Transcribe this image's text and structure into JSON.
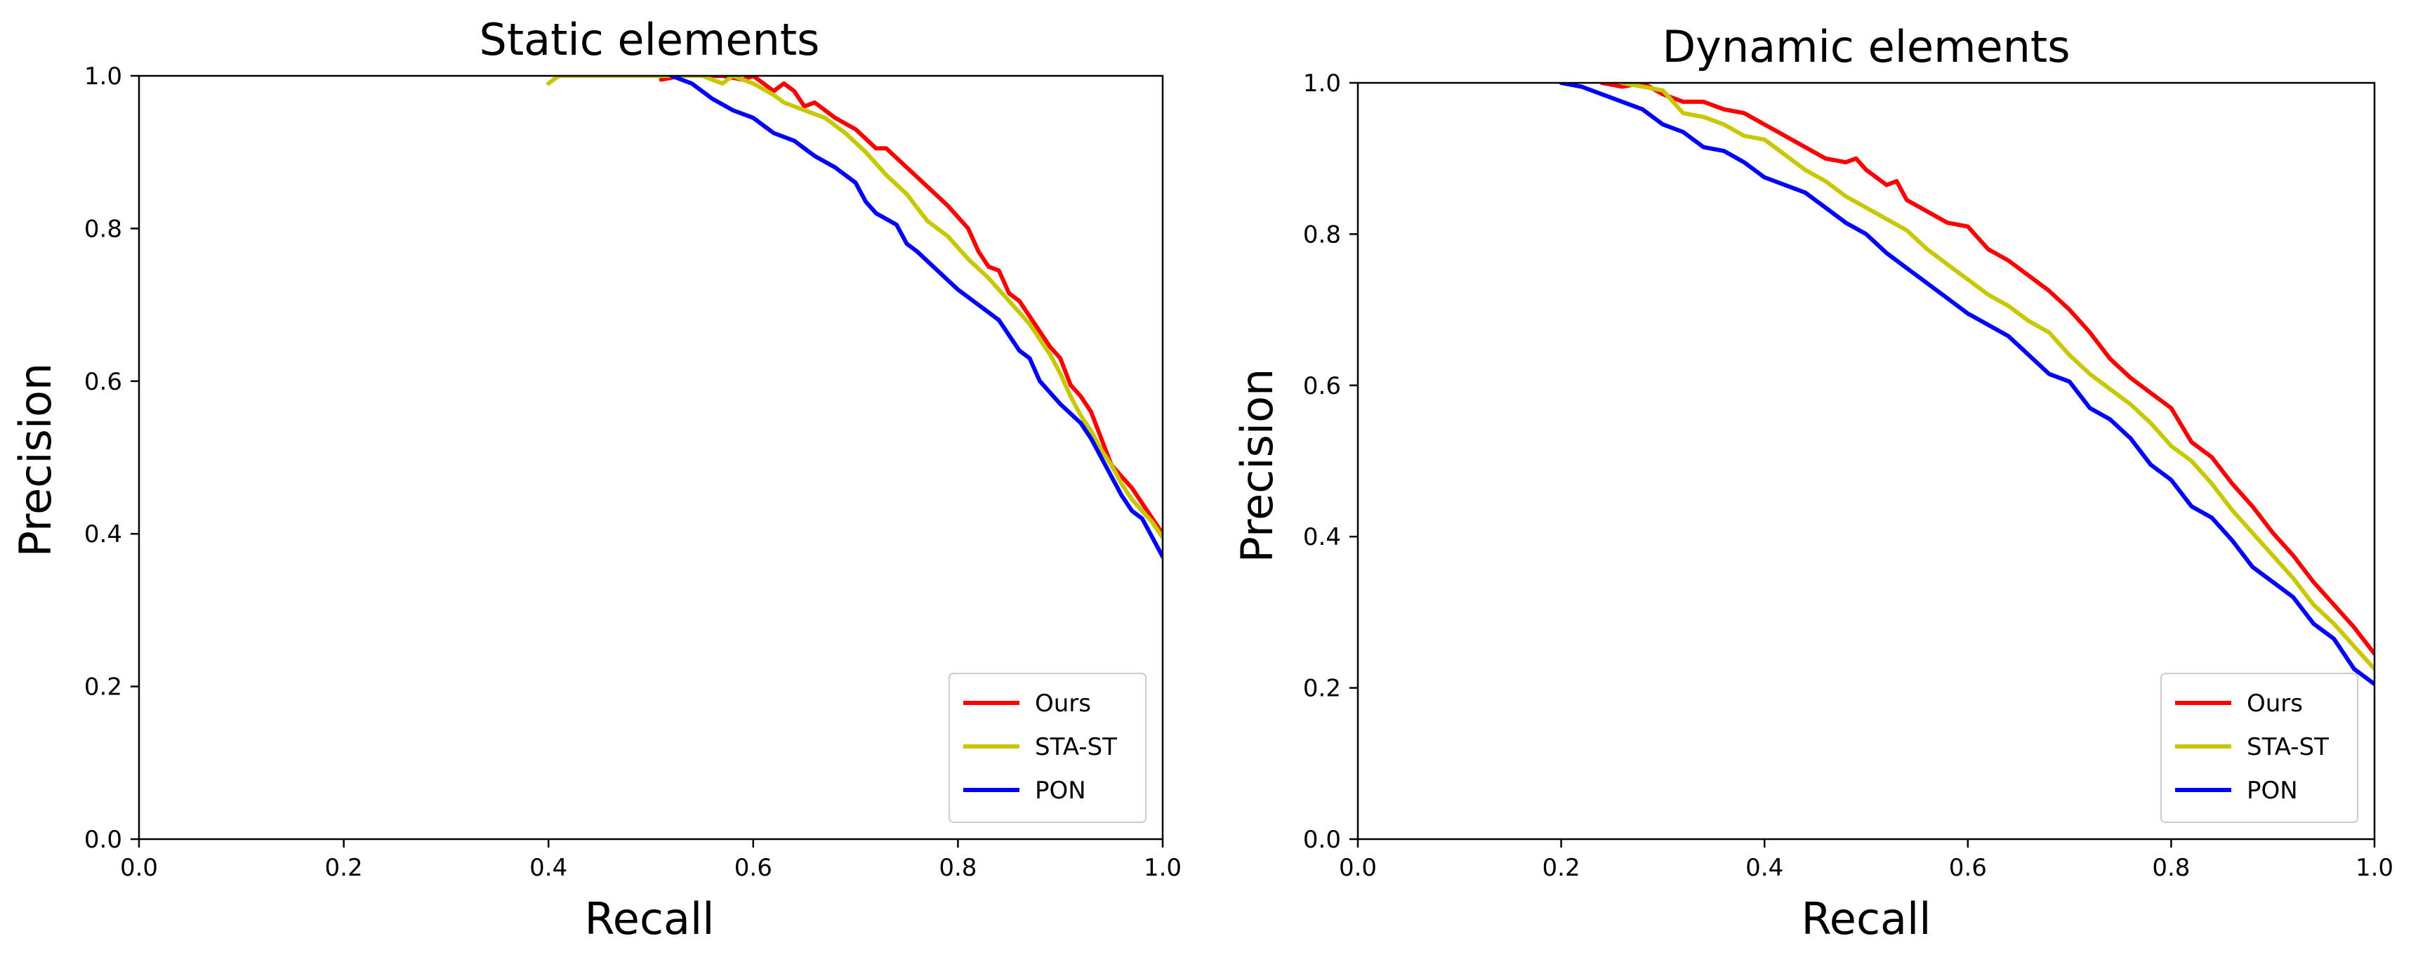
{
  "chart_data": [
    {
      "type": "line",
      "title": "Static elements",
      "xlabel": "Recall",
      "ylabel": "Precision",
      "xlim": [
        0.0,
        1.0
      ],
      "ylim": [
        0.0,
        1.0
      ],
      "xticks": [
        "0.0",
        "0.2",
        "0.4",
        "0.6",
        "0.8",
        "1.0"
      ],
      "yticks": [
        "0.0",
        "0.2",
        "0.4",
        "0.6",
        "0.8",
        "1.0"
      ],
      "grid": false,
      "legend_position": "bottom-right",
      "series": [
        {
          "name": "Ours",
          "color": "#ff0000",
          "x": [
            0.51,
            0.53,
            0.55,
            0.57,
            0.59,
            0.6,
            0.61,
            0.62,
            0.63,
            0.64,
            0.65,
            0.66,
            0.67,
            0.68,
            0.7,
            0.72,
            0.73,
            0.75,
            0.77,
            0.79,
            0.81,
            0.82,
            0.83,
            0.84,
            0.85,
            0.86,
            0.87,
            0.88,
            0.89,
            0.9,
            0.91,
            0.92,
            0.93,
            0.94,
            0.95,
            0.96,
            0.97,
            0.98,
            0.99,
            1.0
          ],
          "y": [
            0.995,
            1.0,
            1.0,
            1.0,
            0.995,
            1.0,
            0.99,
            0.98,
            0.99,
            0.98,
            0.96,
            0.965,
            0.955,
            0.945,
            0.93,
            0.905,
            0.905,
            0.88,
            0.855,
            0.83,
            0.8,
            0.77,
            0.75,
            0.745,
            0.715,
            0.705,
            0.685,
            0.665,
            0.645,
            0.63,
            0.595,
            0.58,
            0.56,
            0.525,
            0.49,
            0.475,
            0.46,
            0.44,
            0.42,
            0.4
          ]
        },
        {
          "name": "STA-ST",
          "color": "#c8c800",
          "x": [
            0.4,
            0.41,
            0.45,
            0.5,
            0.55,
            0.57,
            0.58,
            0.6,
            0.62,
            0.63,
            0.65,
            0.67,
            0.69,
            0.71,
            0.73,
            0.75,
            0.77,
            0.79,
            0.81,
            0.83,
            0.85,
            0.87,
            0.88,
            0.89,
            0.9,
            0.91,
            0.92,
            0.93,
            0.94,
            0.95,
            0.96,
            0.97,
            0.98,
            0.99,
            1.0
          ],
          "y": [
            0.99,
            1.0,
            1.0,
            1.0,
            1.0,
            0.99,
            1.0,
            0.99,
            0.975,
            0.965,
            0.955,
            0.945,
            0.925,
            0.9,
            0.87,
            0.845,
            0.81,
            0.79,
            0.76,
            0.735,
            0.705,
            0.675,
            0.655,
            0.635,
            0.61,
            0.58,
            0.555,
            0.535,
            0.51,
            0.49,
            0.465,
            0.445,
            0.43,
            0.415,
            0.395
          ]
        },
        {
          "name": "PON",
          "color": "#0000ff",
          "x": [
            0.52,
            0.54,
            0.56,
            0.58,
            0.6,
            0.61,
            0.62,
            0.64,
            0.65,
            0.66,
            0.68,
            0.7,
            0.71,
            0.72,
            0.74,
            0.75,
            0.76,
            0.78,
            0.8,
            0.82,
            0.84,
            0.85,
            0.86,
            0.87,
            0.88,
            0.9,
            0.92,
            0.93,
            0.94,
            0.95,
            0.96,
            0.97,
            0.98,
            0.99,
            1.0
          ],
          "y": [
            1.0,
            0.99,
            0.97,
            0.955,
            0.945,
            0.935,
            0.925,
            0.915,
            0.905,
            0.895,
            0.88,
            0.86,
            0.835,
            0.82,
            0.805,
            0.78,
            0.77,
            0.745,
            0.72,
            0.7,
            0.68,
            0.66,
            0.64,
            0.63,
            0.6,
            0.57,
            0.545,
            0.525,
            0.5,
            0.475,
            0.45,
            0.43,
            0.42,
            0.395,
            0.37
          ]
        }
      ]
    },
    {
      "type": "line",
      "title": "Dynamic elements",
      "xlabel": "Recall",
      "ylabel": "Precision",
      "xlim": [
        0.0,
        1.0
      ],
      "ylim": [
        0.0,
        1.0
      ],
      "xticks": [
        "0.0",
        "0.2",
        "0.4",
        "0.6",
        "0.8",
        "1.0"
      ],
      "yticks": [
        "0.0",
        "0.2",
        "0.4",
        "0.6",
        "0.8",
        "1.0"
      ],
      "grid": false,
      "legend_position": "bottom-right",
      "series": [
        {
          "name": "Ours",
          "color": "#ff0000",
          "x": [
            0.24,
            0.26,
            0.28,
            0.3,
            0.32,
            0.34,
            0.36,
            0.38,
            0.4,
            0.42,
            0.44,
            0.46,
            0.48,
            0.49,
            0.5,
            0.52,
            0.53,
            0.54,
            0.56,
            0.58,
            0.6,
            0.62,
            0.64,
            0.66,
            0.68,
            0.7,
            0.72,
            0.74,
            0.76,
            0.78,
            0.8,
            0.82,
            0.84,
            0.86,
            0.88,
            0.9,
            0.92,
            0.94,
            0.96,
            0.98,
            1.0
          ],
          "y": [
            1.0,
            0.995,
            1.0,
            0.985,
            0.975,
            0.975,
            0.965,
            0.96,
            0.945,
            0.93,
            0.915,
            0.9,
            0.895,
            0.9,
            0.885,
            0.865,
            0.87,
            0.845,
            0.83,
            0.815,
            0.81,
            0.78,
            0.765,
            0.745,
            0.725,
            0.7,
            0.67,
            0.635,
            0.61,
            0.59,
            0.57,
            0.525,
            0.505,
            0.47,
            0.44,
            0.405,
            0.375,
            0.34,
            0.31,
            0.28,
            0.245
          ]
        },
        {
          "name": "STA-ST",
          "color": "#c8c800",
          "x": [
            0.26,
            0.28,
            0.3,
            0.32,
            0.34,
            0.36,
            0.38,
            0.4,
            0.42,
            0.44,
            0.46,
            0.48,
            0.5,
            0.52,
            0.54,
            0.56,
            0.58,
            0.6,
            0.62,
            0.64,
            0.66,
            0.68,
            0.7,
            0.72,
            0.74,
            0.76,
            0.78,
            0.8,
            0.82,
            0.84,
            0.86,
            0.88,
            0.9,
            0.92,
            0.94,
            0.96,
            0.98,
            1.0
          ],
          "y": [
            1.0,
            0.995,
            0.99,
            0.96,
            0.955,
            0.945,
            0.93,
            0.925,
            0.905,
            0.885,
            0.87,
            0.85,
            0.835,
            0.82,
            0.805,
            0.78,
            0.76,
            0.74,
            0.72,
            0.705,
            0.685,
            0.67,
            0.64,
            0.615,
            0.595,
            0.575,
            0.55,
            0.52,
            0.5,
            0.47,
            0.435,
            0.405,
            0.375,
            0.345,
            0.31,
            0.285,
            0.255,
            0.225
          ]
        },
        {
          "name": "PON",
          "color": "#0000ff",
          "x": [
            0.2,
            0.22,
            0.24,
            0.26,
            0.28,
            0.3,
            0.32,
            0.34,
            0.36,
            0.38,
            0.4,
            0.42,
            0.44,
            0.46,
            0.48,
            0.5,
            0.52,
            0.54,
            0.56,
            0.58,
            0.6,
            0.62,
            0.64,
            0.66,
            0.68,
            0.7,
            0.72,
            0.74,
            0.76,
            0.78,
            0.8,
            0.82,
            0.84,
            0.86,
            0.88,
            0.9,
            0.92,
            0.94,
            0.96,
            0.98,
            1.0
          ],
          "y": [
            1.0,
            0.995,
            0.985,
            0.975,
            0.965,
            0.945,
            0.935,
            0.915,
            0.91,
            0.895,
            0.875,
            0.865,
            0.855,
            0.835,
            0.815,
            0.8,
            0.775,
            0.755,
            0.735,
            0.715,
            0.695,
            0.68,
            0.665,
            0.64,
            0.615,
            0.605,
            0.57,
            0.555,
            0.53,
            0.495,
            0.475,
            0.44,
            0.425,
            0.395,
            0.36,
            0.34,
            0.32,
            0.285,
            0.265,
            0.225,
            0.205
          ]
        }
      ]
    }
  ]
}
